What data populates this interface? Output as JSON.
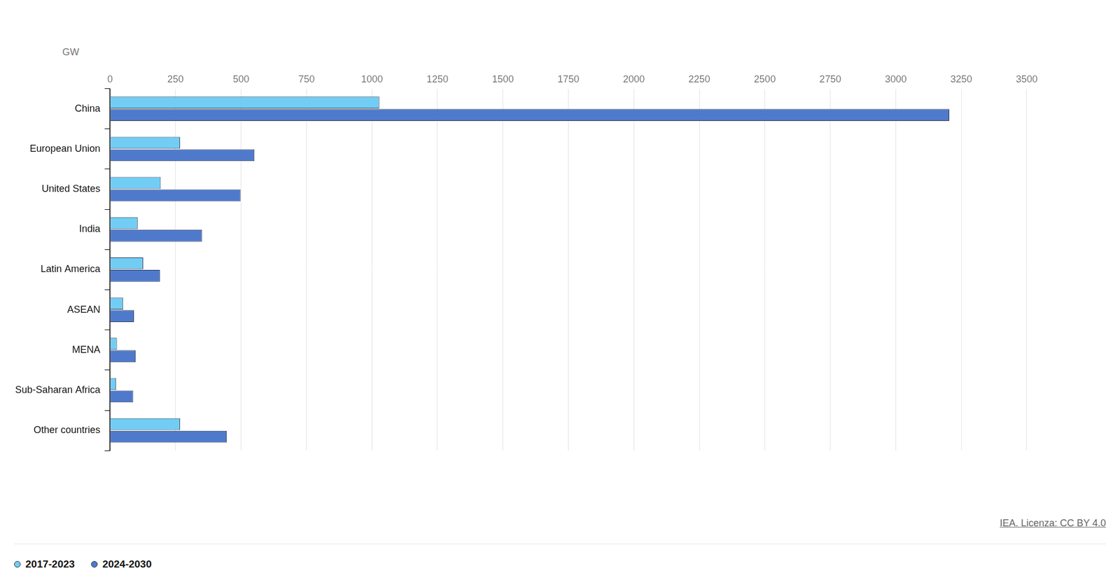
{
  "chart_data": {
    "type": "bar",
    "orientation": "horizontal",
    "xlabel": "GW",
    "note": "IEA. Licenza: CC BY 4.0",
    "categories": [
      "China",
      "European Union",
      "United States",
      "India",
      "Latin America",
      "ASEAN",
      "MENA",
      "Sub-Saharan Africa",
      "Other countries"
    ],
    "series": [
      {
        "name": "2017-2023",
        "color": "#72cdf4",
        "values": [
          1028,
          267,
          193,
          105,
          126,
          50,
          26,
          23,
          267
        ]
      },
      {
        "name": "2024-2030",
        "color": "#4f7acc",
        "values": [
          3204,
          551,
          498,
          351,
          190,
          91,
          97,
          88,
          445
        ]
      }
    ],
    "xlim": [
      0,
      3500
    ],
    "xticks": [
      0,
      250,
      500,
      750,
      1000,
      1250,
      1500,
      1750,
      2000,
      2250,
      2500,
      2750,
      3000,
      3250,
      3500
    ],
    "grid": true,
    "legend": "bottom-left"
  }
}
